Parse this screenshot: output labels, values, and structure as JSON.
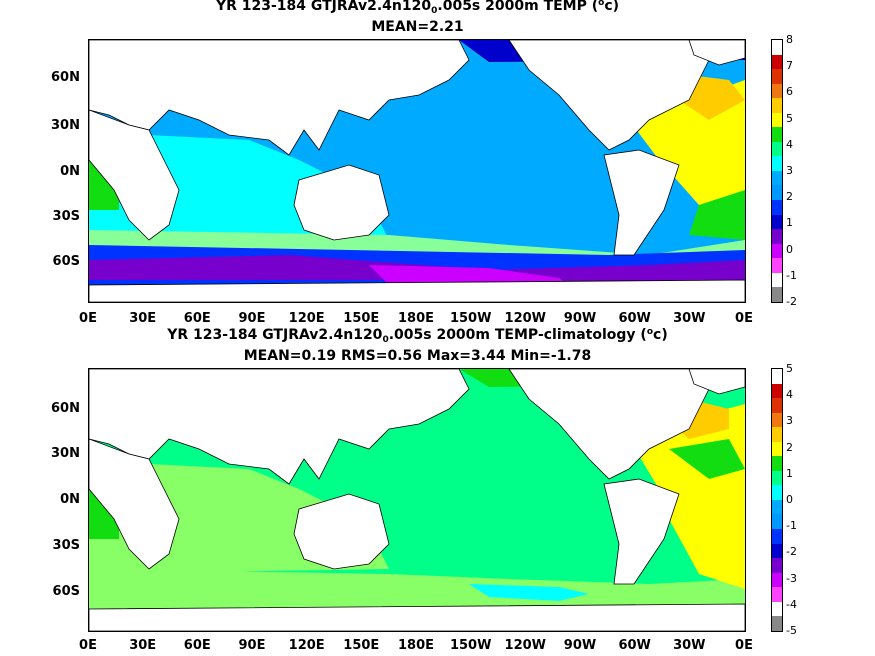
{
  "panels": [
    {
      "title_pre": "YR 123-184 GTJRAv2.4n120",
      "title_sub": "0",
      "title_post": ".005s 2000m TEMP (",
      "title_sup": "o",
      "title_end": "c)",
      "stats": "MEAN=2.21",
      "colorbar_ticks": [
        "8",
        "7",
        "6",
        "5",
        "4",
        "3",
        "2",
        "1",
        "0",
        "-1",
        "-2"
      ],
      "colorbar_colors": [
        "#ffffff",
        "#cc0000",
        "#dd3300",
        "#ee7711",
        "#ffcc00",
        "#ffff00",
        "#11dd11",
        "#00ff88",
        "#00ffff",
        "#00aaff",
        "#0099ff",
        "#0033ff",
        "#0000cc",
        "#7700cc",
        "#cc00ff",
        "#ff44ff",
        "#ffffff",
        "#888888"
      ]
    },
    {
      "title_pre": "YR 123-184 GTJRAv2.4n120",
      "title_sub": "0",
      "title_post": ".005s 2000m TEMP-climatology (",
      "title_sup": "o",
      "title_end": "c)",
      "stats": "MEAN=0.19   RMS=0.56   Max=3.44   Min=-1.78",
      "colorbar_ticks": [
        "5",
        "4",
        "3",
        "2",
        "1",
        "0",
        "-1",
        "-2",
        "-3",
        "-4",
        "-5"
      ],
      "colorbar_colors": [
        "#ffffff",
        "#cc0000",
        "#dd3300",
        "#ee7711",
        "#ffcc00",
        "#ffff00",
        "#11dd11",
        "#00ff88",
        "#00ffff",
        "#00aaff",
        "#0099ff",
        "#0033ff",
        "#0000cc",
        "#7700cc",
        "#cc00ff",
        "#ff44ff",
        "#ffffff",
        "#888888"
      ]
    }
  ],
  "lat_labels": [
    "60N",
    "30N",
    "0N",
    "30S",
    "60S"
  ],
  "lon_labels": [
    "0E",
    "30E",
    "60E",
    "90E",
    "120E",
    "150E",
    "180E",
    "150W",
    "120W",
    "90W",
    "60W",
    "30W",
    "0E"
  ],
  "colors": {
    "land": "#ffffff",
    "coast": "#000000",
    "pacific_top": "#0099ff",
    "pacific_bottom": "#00aaff",
    "indian_top": "#00ffff",
    "atlantic_top": "#ffff00",
    "southern_top": "#0000cc",
    "pacific_diff": "#00ff88",
    "indian_diff": "#88ff66",
    "atlantic_diff": "#ffff00"
  }
}
